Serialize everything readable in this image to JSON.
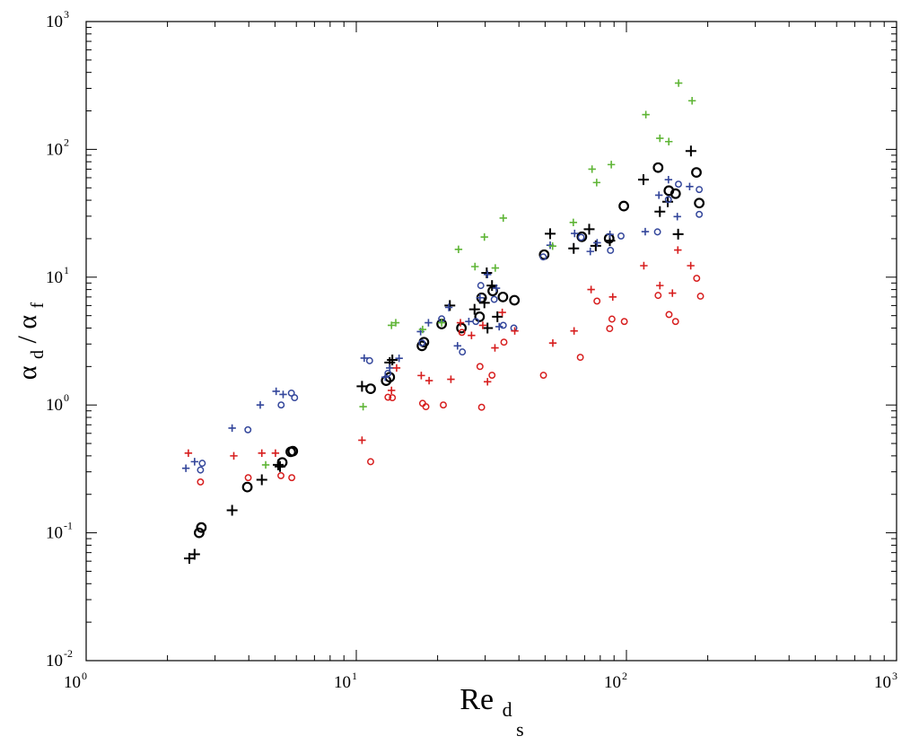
{
  "chart_data": {
    "type": "scatter",
    "xlabel": {
      "main": "Re",
      "sub1": "d",
      "sub2": "s"
    },
    "ylabel": {
      "part1": "α",
      "sub1": "d",
      "slash": "/",
      "part2": "α",
      "sub2": "f"
    },
    "xscale": "log",
    "yscale": "log",
    "xlim": [
      1,
      1000
    ],
    "ylim": [
      0.01,
      1000
    ],
    "x_ticks": [
      {
        "value": 1,
        "base": "10",
        "exp": "0"
      },
      {
        "value": 10,
        "base": "10",
        "exp": "1"
      },
      {
        "value": 100,
        "base": "10",
        "exp": "2"
      },
      {
        "value": 1000,
        "base": "10",
        "exp": "3"
      }
    ],
    "y_ticks": [
      {
        "value": 0.01,
        "base": "10",
        "exp": "-2"
      },
      {
        "value": 0.1,
        "base": "10",
        "exp": "-1"
      },
      {
        "value": 1,
        "base": "10",
        "exp": "0"
      },
      {
        "value": 10,
        "base": "10",
        "exp": "1"
      },
      {
        "value": 100,
        "base": "10",
        "exp": "2"
      },
      {
        "value": 1000,
        "base": "10",
        "exp": "3"
      }
    ],
    "grid": false,
    "legend": "none",
    "series": [
      {
        "color": "#000000",
        "marker": "plus",
        "size": "large",
        "points": [
          [
            2.41,
            0.063
          ],
          [
            2.52,
            0.068
          ],
          [
            3.47,
            0.15
          ],
          [
            4.47,
            0.26
          ],
          [
            5.14,
            0.34
          ],
          [
            5.22,
            0.33
          ],
          [
            10.5,
            1.4
          ],
          [
            13.3,
            2.15
          ],
          [
            13.6,
            2.25
          ],
          [
            22.2,
            6.0
          ],
          [
            27.4,
            5.6
          ],
          [
            29.8,
            6.3
          ],
          [
            30.6,
            4.0
          ],
          [
            30.4,
            10.8
          ],
          [
            31.8,
            8.6
          ],
          [
            33.3,
            4.9
          ],
          [
            52.2,
            21.9
          ],
          [
            63.8,
            16.8
          ],
          [
            72.8,
            23.7
          ],
          [
            77.0,
            17.6
          ],
          [
            86.8,
            19.3
          ],
          [
            115.6,
            58.0
          ],
          [
            133.0,
            32.6
          ],
          [
            142.2,
            38.9
          ],
          [
            155.4,
            21.7
          ],
          [
            173.3,
            97.0
          ]
        ]
      },
      {
        "color": "#000000",
        "marker": "circle",
        "size": "large",
        "points": [
          [
            2.62,
            0.1
          ],
          [
            2.67,
            0.11
          ],
          [
            3.95,
            0.228
          ],
          [
            5.32,
            0.355
          ],
          [
            5.72,
            0.43
          ],
          [
            5.82,
            0.435
          ],
          [
            11.3,
            1.34
          ],
          [
            12.9,
            1.55
          ],
          [
            13.3,
            1.65
          ],
          [
            17.5,
            2.9
          ],
          [
            17.8,
            3.1
          ],
          [
            20.7,
            4.3
          ],
          [
            24.5,
            4.0
          ],
          [
            28.6,
            4.9
          ],
          [
            29.1,
            6.9
          ],
          [
            32.0,
            7.8
          ],
          [
            34.9,
            7.0
          ],
          [
            38.5,
            6.6
          ],
          [
            49.6,
            15.0
          ],
          [
            68.4,
            20.7
          ],
          [
            86.3,
            20.1
          ],
          [
            97.8,
            36.0
          ],
          [
            131.0,
            72.0
          ],
          [
            143.6,
            47.5
          ],
          [
            152.0,
            45.0
          ],
          [
            181.6,
            66.0
          ],
          [
            186.0,
            38.0
          ]
        ]
      },
      {
        "color": "#33469b",
        "marker": "plus",
        "size": "small",
        "points": [
          [
            2.34,
            0.32
          ],
          [
            2.52,
            0.36
          ],
          [
            3.47,
            0.66
          ],
          [
            4.41,
            1.0
          ],
          [
            5.05,
            1.28
          ],
          [
            5.36,
            1.21
          ],
          [
            10.7,
            2.33
          ],
          [
            12.8,
            1.65
          ],
          [
            13.3,
            1.95
          ],
          [
            14.4,
            2.32
          ],
          [
            17.3,
            3.75
          ],
          [
            18.5,
            4.4
          ],
          [
            22.0,
            5.8
          ],
          [
            23.7,
            2.9
          ],
          [
            26.1,
            4.5
          ],
          [
            28.7,
            6.9
          ],
          [
            30.6,
            10.5
          ],
          [
            33.0,
            8.2
          ],
          [
            33.8,
            4.1
          ],
          [
            52.2,
            17.8
          ],
          [
            64.3,
            22.0
          ],
          [
            73.5,
            15.9
          ],
          [
            77.9,
            18.6
          ],
          [
            86.9,
            21.6
          ],
          [
            117.4,
            22.7
          ],
          [
            131.9,
            43.8
          ],
          [
            143.1,
            57.9
          ],
          [
            154.3,
            29.8
          ],
          [
            171.4,
            51.2
          ]
        ]
      },
      {
        "color": "#33469b",
        "marker": "circle",
        "size": "small",
        "points": [
          [
            2.65,
            0.31
          ],
          [
            2.69,
            0.35
          ],
          [
            3.97,
            0.64
          ],
          [
            5.27,
            1.0
          ],
          [
            5.75,
            1.24
          ],
          [
            5.91,
            1.14
          ],
          [
            11.2,
            2.22
          ],
          [
            13.1,
            1.77
          ],
          [
            17.5,
            3.06
          ],
          [
            20.7,
            4.72
          ],
          [
            24.7,
            2.6
          ],
          [
            27.7,
            4.5
          ],
          [
            28.9,
            8.6
          ],
          [
            32.4,
            6.7
          ],
          [
            35.0,
            4.2
          ],
          [
            38.3,
            4.0
          ],
          [
            49.2,
            14.4
          ],
          [
            68.0,
            20.5
          ],
          [
            87.3,
            16.2
          ],
          [
            95.5,
            21.0
          ],
          [
            130.3,
            22.6
          ],
          [
            143.0,
            40.5
          ],
          [
            155.8,
            53.4
          ],
          [
            186.0,
            48.5
          ],
          [
            186.0,
            31.0
          ]
        ]
      },
      {
        "color": "#d71e1e",
        "marker": "plus",
        "size": "small",
        "points": [
          [
            2.39,
            0.42
          ],
          [
            3.52,
            0.4
          ],
          [
            4.47,
            0.42
          ],
          [
            5.02,
            0.42
          ],
          [
            10.5,
            0.53
          ],
          [
            13.5,
            1.3
          ],
          [
            14.1,
            1.95
          ],
          [
            17.4,
            1.7
          ],
          [
            18.6,
            1.55
          ],
          [
            22.4,
            1.59
          ],
          [
            24.3,
            4.4
          ],
          [
            26.7,
            3.5
          ],
          [
            29.4,
            4.2
          ],
          [
            30.6,
            1.52
          ],
          [
            32.6,
            2.8
          ],
          [
            34.7,
            5.3
          ],
          [
            38.6,
            3.8
          ],
          [
            53.4,
            3.05
          ],
          [
            64.0,
            3.8
          ],
          [
            74.0,
            8.0
          ],
          [
            89.0,
            7.0
          ],
          [
            116.0,
            12.3
          ],
          [
            133.0,
            8.6
          ],
          [
            148.0,
            7.5
          ],
          [
            155.0,
            16.3
          ],
          [
            173.0,
            12.3
          ]
        ]
      },
      {
        "color": "#d71e1e",
        "marker": "circle",
        "size": "small",
        "points": [
          [
            2.65,
            0.25
          ],
          [
            3.98,
            0.27
          ],
          [
            5.26,
            0.28
          ],
          [
            5.77,
            0.27
          ],
          [
            11.3,
            0.36
          ],
          [
            13.1,
            1.15
          ],
          [
            13.6,
            1.14
          ],
          [
            17.6,
            1.03
          ],
          [
            18.1,
            0.97
          ],
          [
            21.0,
            1.0
          ],
          [
            24.6,
            3.7
          ],
          [
            28.7,
            2.0
          ],
          [
            29.1,
            0.96
          ],
          [
            31.8,
            1.71
          ],
          [
            35.2,
            3.1
          ],
          [
            49.3,
            1.71
          ],
          [
            67.5,
            2.36
          ],
          [
            77.8,
            6.5
          ],
          [
            86.7,
            3.96
          ],
          [
            88.4,
            4.7
          ],
          [
            98.2,
            4.5
          ],
          [
            131.0,
            7.2
          ],
          [
            143.8,
            5.1
          ],
          [
            152.0,
            4.5
          ],
          [
            182.0,
            9.8
          ],
          [
            188.0,
            7.1
          ]
        ]
      },
      {
        "color": "#5fb536",
        "marker": "plus",
        "size": "small",
        "points": [
          [
            4.62,
            0.34
          ],
          [
            10.6,
            0.97
          ],
          [
            13.5,
            4.2
          ],
          [
            14.0,
            4.4
          ],
          [
            17.6,
            3.9
          ],
          [
            20.7,
            4.4
          ],
          [
            23.9,
            16.5
          ],
          [
            27.5,
            12.1
          ],
          [
            29.8,
            20.6
          ],
          [
            32.7,
            11.8
          ],
          [
            35.0,
            29.0
          ],
          [
            53.3,
            17.5
          ],
          [
            63.6,
            26.8
          ],
          [
            74.6,
            70.0
          ],
          [
            77.6,
            55.0
          ],
          [
            87.9,
            76.0
          ],
          [
            118.0,
            187.0
          ],
          [
            133.0,
            122.0
          ],
          [
            143.5,
            115.0
          ],
          [
            156.0,
            330.0
          ],
          [
            175.0,
            240.0
          ]
        ]
      }
    ]
  }
}
